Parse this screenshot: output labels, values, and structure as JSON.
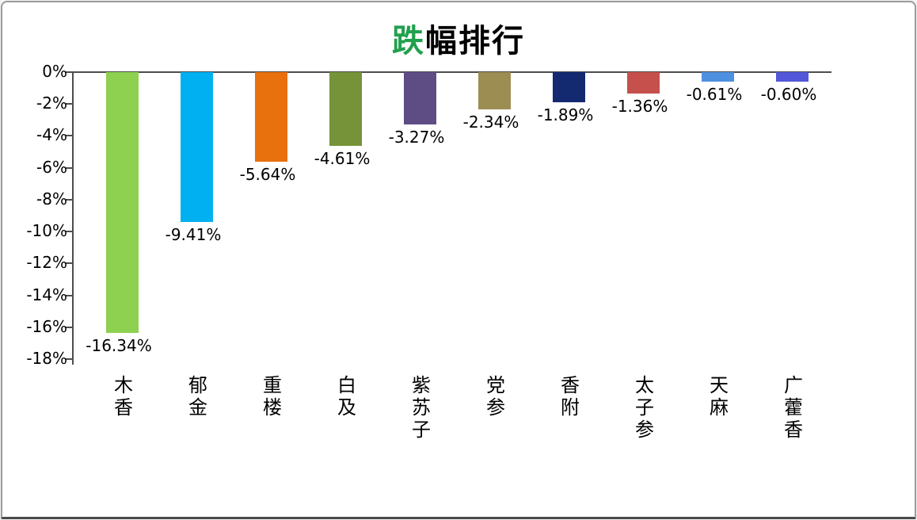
{
  "frame": {
    "background": "#ffffff",
    "border_color": "#9b9b9b"
  },
  "title": {
    "accent_char": "跌",
    "rest": "幅排行",
    "accent_color": "#21a04d",
    "text_color": "#000000"
  },
  "chart_data": {
    "type": "bar",
    "title": "跌幅排行",
    "categories": [
      "木香",
      "郁金",
      "重楼",
      "白及",
      "紫苏子",
      "党参",
      "香附",
      "太子参",
      "天麻",
      "广藿香"
    ],
    "values": [
      -16.34,
      -9.41,
      -5.64,
      -4.61,
      -3.27,
      -2.34,
      -1.89,
      -1.36,
      -0.61,
      -0.6
    ],
    "value_labels": [
      "-16.34%",
      "-9.41%",
      "-5.64%",
      "-4.61%",
      "-3.27%",
      "-2.34%",
      "-1.89%",
      "-1.36%",
      "-0.61%",
      "-0.60%"
    ],
    "bar_colors": [
      "#8ed04f",
      "#00b0f0",
      "#e8700d",
      "#769339",
      "#5e4c85",
      "#9c8d53",
      "#132a70",
      "#c5504c",
      "#4e90e0",
      "#5157d8"
    ],
    "yticks": [
      "0%",
      "-2%",
      "-4%",
      "-6%",
      "-8%",
      "-10%",
      "-12%",
      "-14%",
      "-16%",
      "-18%"
    ],
    "ytick_values": [
      0,
      -2,
      -4,
      -6,
      -8,
      -10,
      -12,
      -14,
      -16,
      -18
    ],
    "ylim": [
      -18,
      0
    ],
    "xlabel": "",
    "ylabel": "",
    "grid": false,
    "legend": false,
    "axis_color": "#4d4d4d",
    "label_color": "#000000"
  }
}
